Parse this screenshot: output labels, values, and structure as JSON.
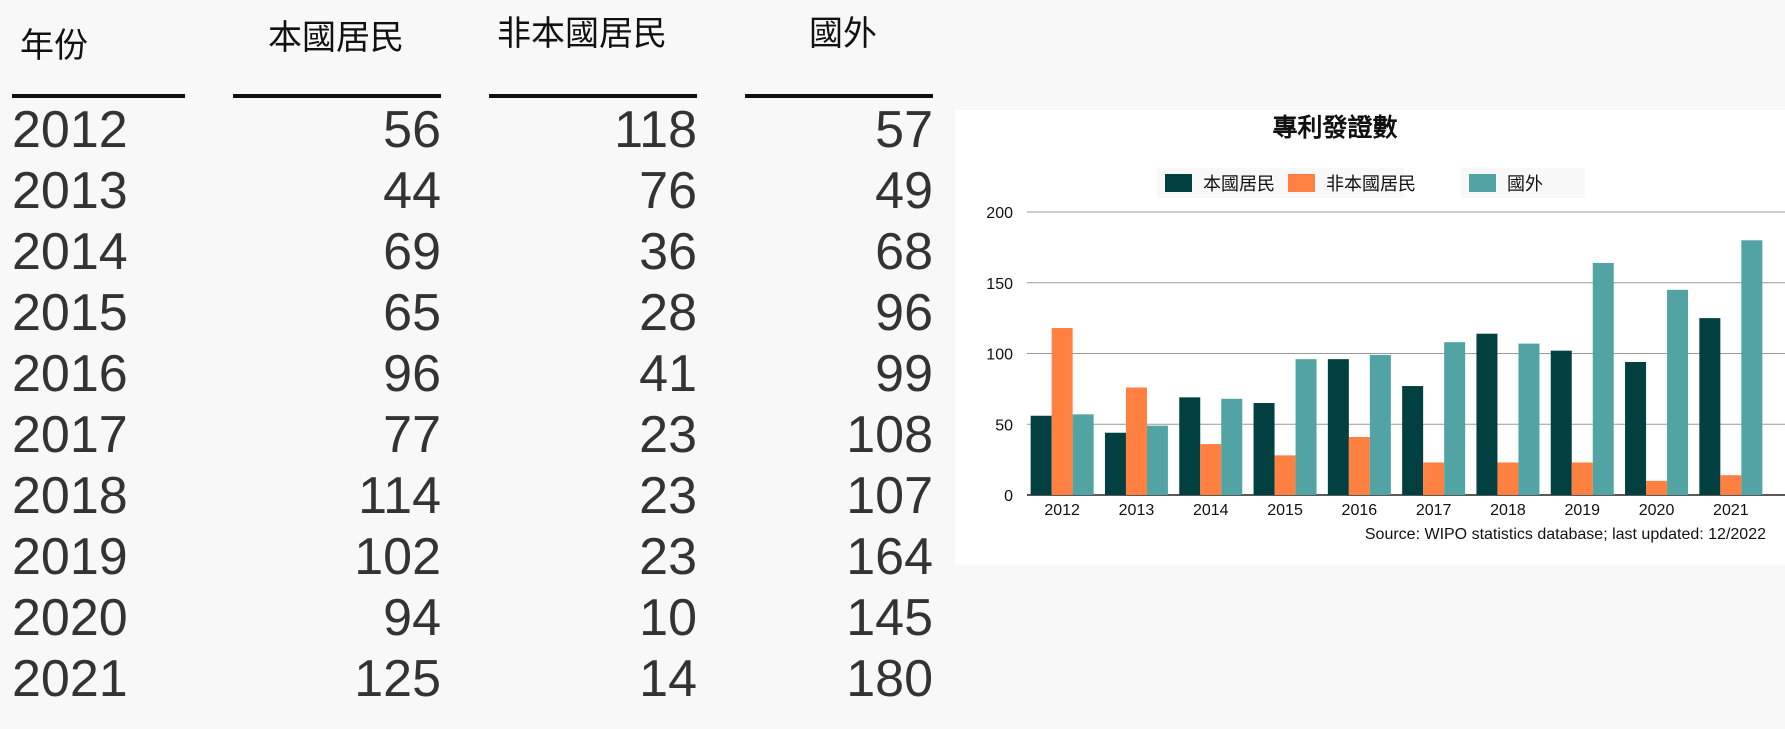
{
  "table": {
    "headers": [
      "年份",
      "本國居民",
      "非本國居民",
      "國外"
    ],
    "rows": [
      [
        "2012",
        "56",
        "118",
        "57"
      ],
      [
        "2013",
        "44",
        "76",
        "49"
      ],
      [
        "2014",
        "69",
        "36",
        "68"
      ],
      [
        "2015",
        "65",
        "28",
        "96"
      ],
      [
        "2016",
        "96",
        "41",
        "99"
      ],
      [
        "2017",
        "77",
        "23",
        "108"
      ],
      [
        "2018",
        "114",
        "23",
        "107"
      ],
      [
        "2019",
        "102",
        "23",
        "164"
      ],
      [
        "2020",
        "94",
        "10",
        "145"
      ],
      [
        "2021",
        "125",
        "14",
        "180"
      ]
    ]
  },
  "chart_data": {
    "type": "bar",
    "title": "專利發證數",
    "categories": [
      "2012",
      "2013",
      "2014",
      "2015",
      "2016",
      "2017",
      "2018",
      "2019",
      "2020",
      "2021"
    ],
    "series": [
      {
        "name": "本國居民",
        "color": "#004040",
        "values": [
          56,
          44,
          69,
          65,
          96,
          77,
          114,
          102,
          94,
          125
        ]
      },
      {
        "name": "非本國居民",
        "color": "#ff8040",
        "values": [
          118,
          76,
          36,
          28,
          41,
          23,
          23,
          23,
          10,
          14
        ]
      },
      {
        "name": "國外",
        "color": "#52a3a3",
        "values": [
          57,
          49,
          68,
          96,
          99,
          108,
          107,
          164,
          145,
          180
        ]
      }
    ],
    "ylim": [
      0,
      200
    ],
    "yticks": [
      "0",
      "50",
      "100",
      "150",
      "200"
    ],
    "grid": true,
    "legend": "top",
    "source": "Source: WIPO statistics database; last updated: 12/2022"
  }
}
